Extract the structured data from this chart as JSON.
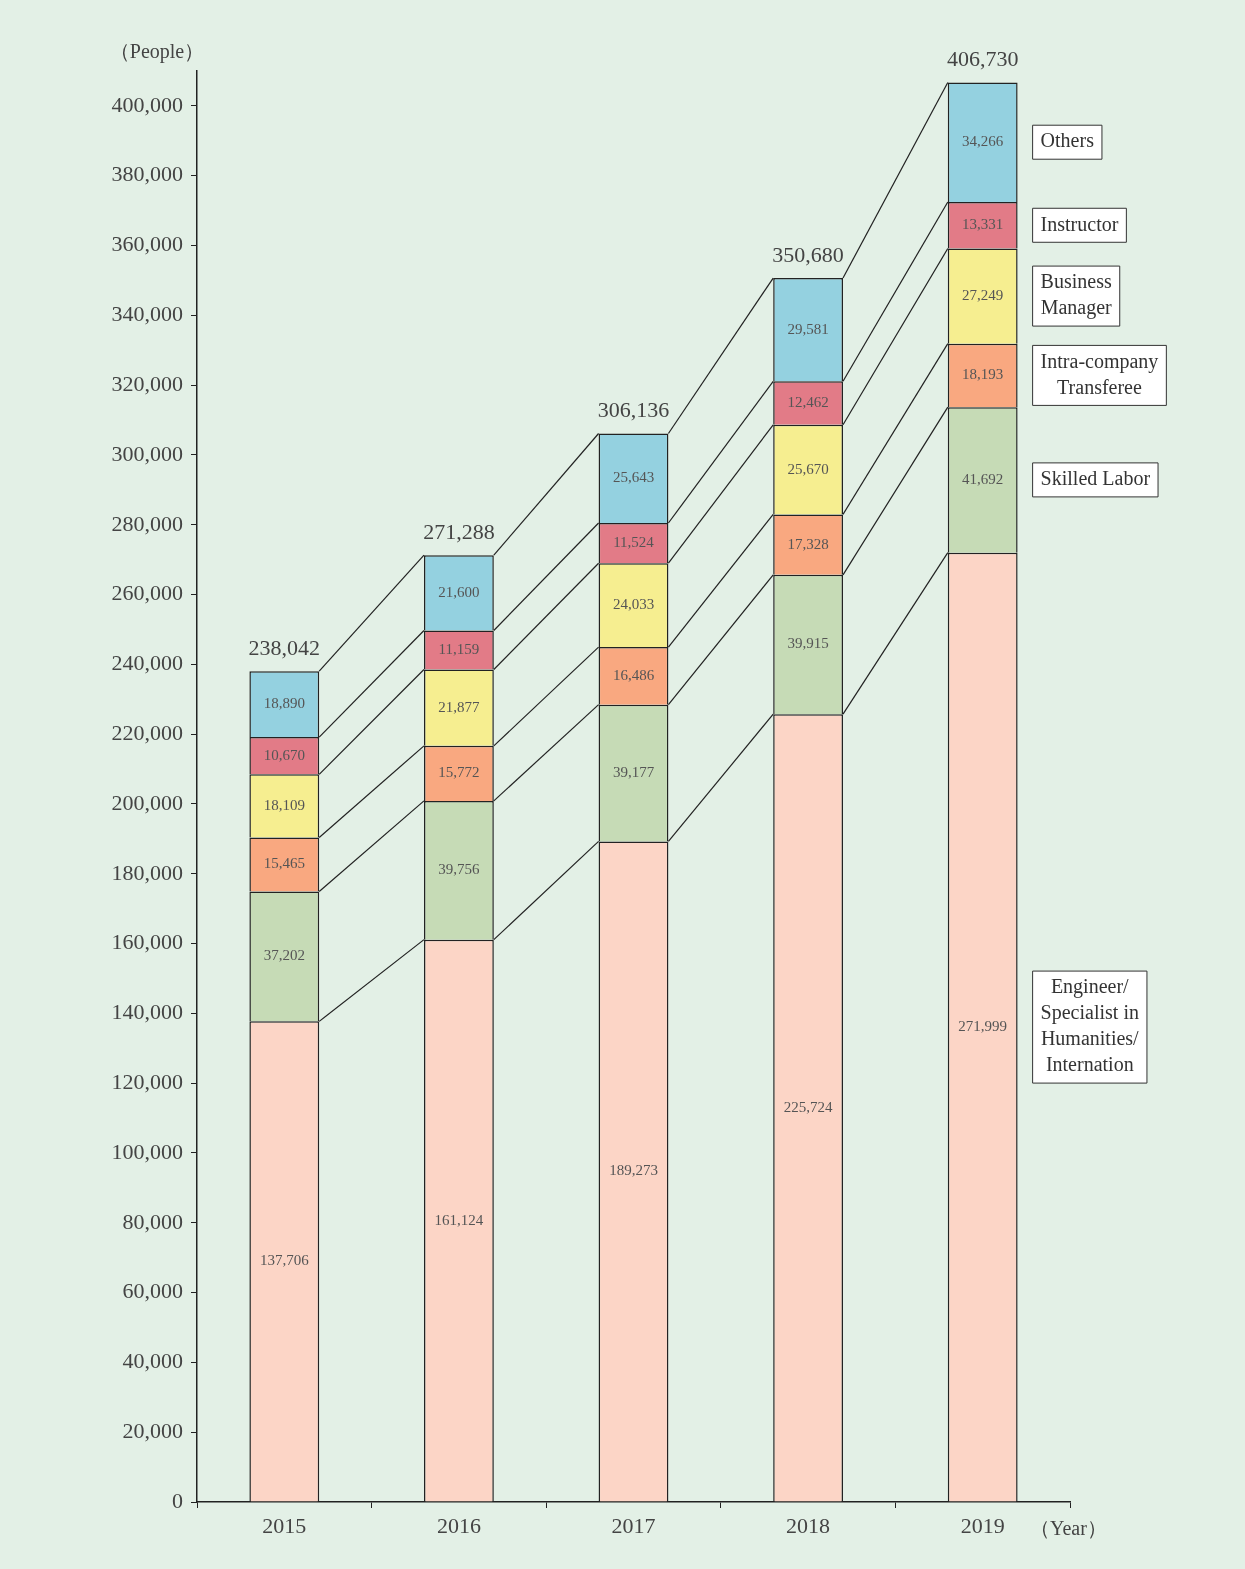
{
  "chart_data": {
    "type": "bar",
    "stacked": true,
    "xlabel": "（Year）",
    "ylabel": "（People）",
    "categories": [
      "2015",
      "2016",
      "2017",
      "2018",
      "2019"
    ],
    "series": [
      {
        "name": "Engineer/Specialist in Humanities/Internation",
        "color": "#fcd5c6",
        "values": [
          137706,
          161124,
          189273,
          225724,
          271999
        ],
        "value_labels": [
          "137,706",
          "161,124",
          "189,273",
          "225,724",
          "271,999"
        ]
      },
      {
        "name": "Skilled Labor",
        "color": "#c6dbb6",
        "values": [
          37202,
          39756,
          39177,
          39915,
          41692
        ],
        "value_labels": [
          "37,202",
          "39,756",
          "39,177",
          "39,915",
          "41,692"
        ]
      },
      {
        "name": "Intra-company Transferee",
        "color": "#f9a880",
        "values": [
          15465,
          15772,
          16486,
          17328,
          18193
        ],
        "value_labels": [
          "15,465",
          "15,772",
          "16,486",
          "17,328",
          "18,193"
        ]
      },
      {
        "name": "Business Manager",
        "color": "#f6ee90",
        "values": [
          18109,
          21877,
          24033,
          25670,
          27249
        ],
        "value_labels": [
          "18,109",
          "21,877",
          "24,033",
          "25,670",
          "27,249"
        ]
      },
      {
        "name": "Instructor",
        "color": "#e27b87",
        "values": [
          10670,
          11159,
          11524,
          12462,
          13331
        ],
        "value_labels": [
          "10,670",
          "11,159",
          "11,524",
          "12,462",
          "13,331"
        ]
      },
      {
        "name": "Others",
        "color": "#94d1e0",
        "values": [
          18890,
          21600,
          25643,
          29581,
          34266
        ],
        "value_labels": [
          "18,890",
          "21,600",
          "25,643",
          "29,581",
          "34,266"
        ]
      }
    ],
    "totals": [
      "238,042",
      "271,288",
      "306,136",
      "350,680",
      "406,730"
    ],
    "legend": "right",
    "ylim": [
      0,
      410000
    ],
    "yticks": [
      0,
      {
        "value": 20000,
        "label": "20,000"
      },
      {
        "value": 40000,
        "label": "40,000"
      },
      {
        "value": 60000,
        "label": "60,000"
      },
      {
        "value": 80000,
        "label": "80,000"
      },
      {
        "value": 100000,
        "label": "100,000"
      },
      {
        "value": 120000,
        "label": "120,000"
      },
      {
        "value": 140000,
        "label": "140,000"
      },
      {
        "value": 160000,
        "label": "160,000"
      },
      {
        "value": 180000,
        "label": "180,000"
      },
      {
        "value": 200000,
        "label": "200,000"
      },
      {
        "value": 220000,
        "label": "220,000"
      },
      {
        "value": 240000,
        "label": "240,000"
      },
      {
        "value": 260000,
        "label": "260,000"
      },
      {
        "value": 280000,
        "label": "280,000"
      },
      {
        "value": 300000,
        "label": "300,000"
      },
      {
        "value": 320000,
        "label": "320,000"
      },
      {
        "value": 340000,
        "label": "340,000"
      },
      {
        "value": 360000,
        "label": "360,000"
      },
      {
        "value": 380000,
        "label": "380,000"
      },
      {
        "value": 400000,
        "label": "400,000"
      }
    ]
  }
}
